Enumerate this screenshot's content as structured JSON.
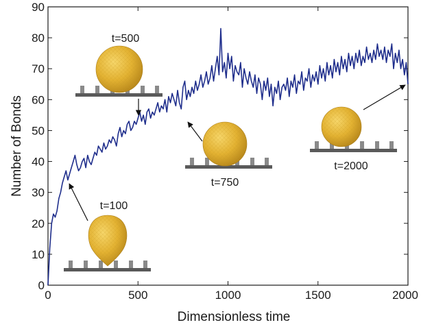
{
  "chart_data": {
    "type": "line",
    "xlabel": "Dimensionless time",
    "ylabel": "Number of Bonds",
    "xlim": [
      0,
      2000
    ],
    "ylim": [
      0,
      90
    ],
    "xticks": [
      0,
      500,
      1000,
      1500,
      2000
    ],
    "yticks": [
      0,
      10,
      20,
      30,
      40,
      50,
      60,
      70,
      80,
      90
    ],
    "grid": false,
    "series": [
      {
        "color": "#1f2e8c",
        "x": [
          0,
          10,
          20,
          30,
          40,
          50,
          60,
          70,
          80,
          90,
          100,
          110,
          120,
          130,
          140,
          150,
          160,
          170,
          180,
          190,
          200,
          210,
          220,
          230,
          240,
          250,
          260,
          270,
          280,
          290,
          300,
          310,
          320,
          330,
          340,
          350,
          360,
          370,
          380,
          390,
          400,
          410,
          420,
          430,
          440,
          450,
          460,
          470,
          480,
          490,
          500,
          510,
          520,
          530,
          540,
          550,
          560,
          570,
          580,
          590,
          600,
          610,
          620,
          630,
          640,
          650,
          660,
          670,
          680,
          690,
          700,
          710,
          720,
          730,
          740,
          750,
          760,
          770,
          780,
          790,
          800,
          810,
          820,
          830,
          840,
          850,
          860,
          870,
          880,
          890,
          900,
          910,
          920,
          930,
          940,
          950,
          960,
          970,
          980,
          990,
          1000,
          1010,
          1020,
          1030,
          1040,
          1050,
          1060,
          1070,
          1080,
          1090,
          1100,
          1110,
          1120,
          1130,
          1140,
          1150,
          1160,
          1170,
          1180,
          1190,
          1200,
          1210,
          1220,
          1230,
          1240,
          1250,
          1260,
          1270,
          1280,
          1290,
          1300,
          1310,
          1320,
          1330,
          1340,
          1350,
          1360,
          1370,
          1380,
          1390,
          1400,
          1410,
          1420,
          1430,
          1440,
          1450,
          1460,
          1470,
          1480,
          1490,
          1500,
          1510,
          1520,
          1530,
          1540,
          1550,
          1560,
          1570,
          1580,
          1590,
          1600,
          1610,
          1620,
          1630,
          1640,
          1650,
          1660,
          1670,
          1680,
          1690,
          1700,
          1710,
          1720,
          1730,
          1740,
          1750,
          1760,
          1770,
          1780,
          1790,
          1800,
          1810,
          1820,
          1830,
          1840,
          1850,
          1860,
          1870,
          1880,
          1890,
          1900,
          1910,
          1920,
          1930,
          1940,
          1950,
          1960,
          1970,
          1980,
          1990,
          2000
        ],
        "y": [
          0,
          12,
          20,
          23,
          22,
          24,
          28,
          30,
          33,
          35,
          37,
          34,
          36,
          38,
          40,
          42,
          39,
          37,
          38,
          40,
          41,
          38,
          42,
          40,
          39,
          41,
          43,
          42,
          45,
          44,
          43,
          46,
          44,
          45,
          47,
          46,
          48,
          47,
          45,
          49,
          51,
          48,
          50,
          49,
          52,
          53,
          50,
          51,
          53,
          52,
          54,
          56,
          53,
          55,
          52,
          56,
          57,
          54,
          56,
          55,
          57,
          59,
          56,
          58,
          57,
          60,
          56,
          61,
          59,
          62,
          60,
          58,
          63,
          59,
          57,
          64,
          66,
          60,
          63,
          61,
          64,
          62,
          66,
          63,
          65,
          68,
          64,
          66,
          69,
          65,
          67,
          71,
          66,
          70,
          74,
          68,
          83,
          69,
          72,
          67,
          75,
          70,
          74,
          66,
          71,
          69,
          68,
          72,
          64,
          70,
          67,
          65,
          69,
          66,
          64,
          68,
          62,
          67,
          65,
          60,
          66,
          63,
          67,
          61,
          65,
          58,
          64,
          62,
          66,
          60,
          64,
          65,
          63,
          67,
          61,
          66,
          64,
          68,
          62,
          66,
          65,
          69,
          63,
          67,
          66,
          70,
          64,
          68,
          66,
          69,
          65,
          71,
          67,
          70,
          66,
          72,
          68,
          71,
          67,
          73,
          69,
          72,
          68,
          74,
          70,
          73,
          69,
          75,
          71,
          74,
          70,
          75,
          72,
          76,
          71,
          74,
          72,
          77,
          73,
          75,
          72,
          76,
          73,
          78,
          74,
          76,
          73,
          77,
          72,
          76,
          74,
          78,
          70,
          75,
          72,
          76,
          70,
          73,
          68,
          72,
          65
        ]
      }
    ],
    "annotations": [
      {
        "text": "t=100",
        "x": 100,
        "y": 35
      },
      {
        "text": "t=500",
        "x": 500,
        "y": 54
      },
      {
        "text": "t=750",
        "x": 760,
        "y": 56
      },
      {
        "text": "t=2000",
        "x": 2000,
        "y": 65
      }
    ]
  },
  "colors": {
    "line": "#1f2e8c",
    "sphere_fill": "#e3b232",
    "substrate": "#5a5a5a",
    "pillar": "#8a8a8a"
  }
}
